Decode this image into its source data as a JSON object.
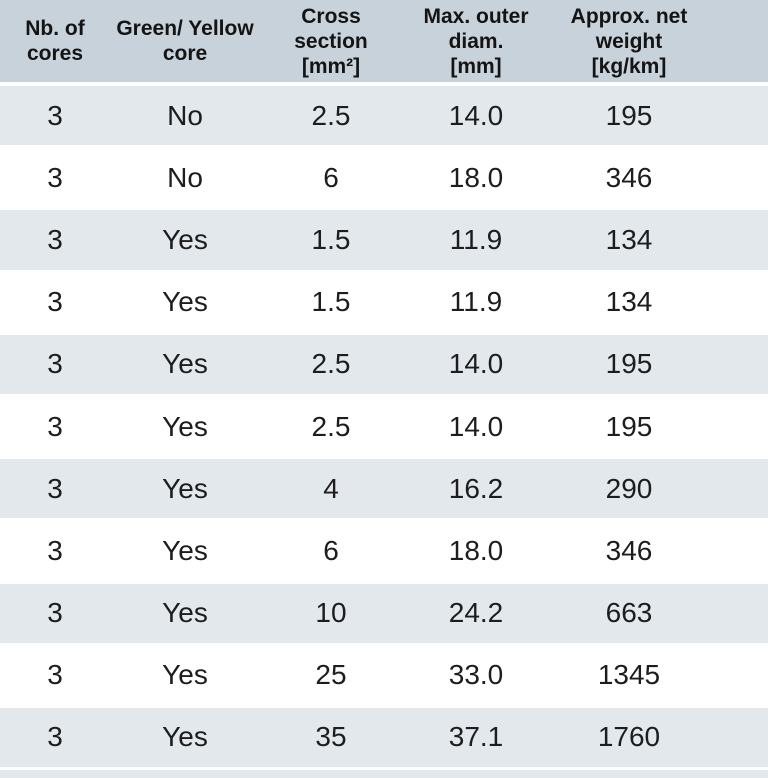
{
  "colors": {
    "header_bg": "#c8d2da",
    "row_alt_bg": "#e3e8ec",
    "row_bg": "#ffffff",
    "separator": "#ffffff",
    "header_text": "#141414",
    "body_text": "#1d1d1d"
  },
  "table": {
    "columns": [
      {
        "label": "Nb. of cores",
        "lines": [
          "Nb. of",
          "cores"
        ]
      },
      {
        "label": "Green/ Yellow core",
        "lines": [
          "Green/ Yellow",
          "core"
        ]
      },
      {
        "label": "Cross section [mm²]",
        "lines": [
          "Cross",
          "section",
          "[mm²]"
        ]
      },
      {
        "label": "Max. outer diam. [mm]",
        "lines": [
          "Max. outer",
          "diam.",
          "[mm]"
        ]
      },
      {
        "label": "Approx. net weight [kg/km]",
        "lines": [
          "Approx. net",
          "weight",
          "[kg/km]"
        ]
      }
    ],
    "rows": [
      {
        "cells": [
          "3",
          "No",
          "2.5",
          "14.0",
          "195"
        ]
      },
      {
        "cells": [
          "3",
          "No",
          "6",
          "18.0",
          "346"
        ]
      },
      {
        "cells": [
          "3",
          "Yes",
          "1.5",
          "11.9",
          "134"
        ]
      },
      {
        "cells": [
          "3",
          "Yes",
          "1.5",
          "11.9",
          "134"
        ]
      },
      {
        "cells": [
          "3",
          "Yes",
          "2.5",
          "14.0",
          "195"
        ]
      },
      {
        "cells": [
          "3",
          "Yes",
          "2.5",
          "14.0",
          "195"
        ]
      },
      {
        "cells": [
          "3",
          "Yes",
          "4",
          "16.2",
          "290"
        ]
      },
      {
        "cells": [
          "3",
          "Yes",
          "6",
          "18.0",
          "346"
        ]
      },
      {
        "cells": [
          "3",
          "Yes",
          "10",
          "24.2",
          "663"
        ]
      },
      {
        "cells": [
          "3",
          "Yes",
          "25",
          "33.0",
          "1345"
        ]
      },
      {
        "cells": [
          "3",
          "Yes",
          "35",
          "37.1",
          "1760"
        ]
      }
    ]
  },
  "chart_data": {
    "type": "table",
    "columns": [
      "Nb. of cores",
      "Green/ Yellow core",
      "Cross section [mm²]",
      "Max. outer diam. [mm]",
      "Approx. net weight [kg/km]"
    ],
    "rows": [
      [
        "3",
        "No",
        "2.5",
        "14.0",
        "195"
      ],
      [
        "3",
        "No",
        "6",
        "18.0",
        "346"
      ],
      [
        "3",
        "Yes",
        "1.5",
        "11.9",
        "134"
      ],
      [
        "3",
        "Yes",
        "1.5",
        "11.9",
        "134"
      ],
      [
        "3",
        "Yes",
        "2.5",
        "14.0",
        "195"
      ],
      [
        "3",
        "Yes",
        "2.5",
        "14.0",
        "195"
      ],
      [
        "3",
        "Yes",
        "4",
        "16.2",
        "290"
      ],
      [
        "3",
        "Yes",
        "6",
        "18.0",
        "346"
      ],
      [
        "3",
        "Yes",
        "10",
        "24.2",
        "663"
      ],
      [
        "3",
        "Yes",
        "25",
        "33.0",
        "1345"
      ],
      [
        "3",
        "Yes",
        "35",
        "37.1",
        "1760"
      ]
    ]
  }
}
